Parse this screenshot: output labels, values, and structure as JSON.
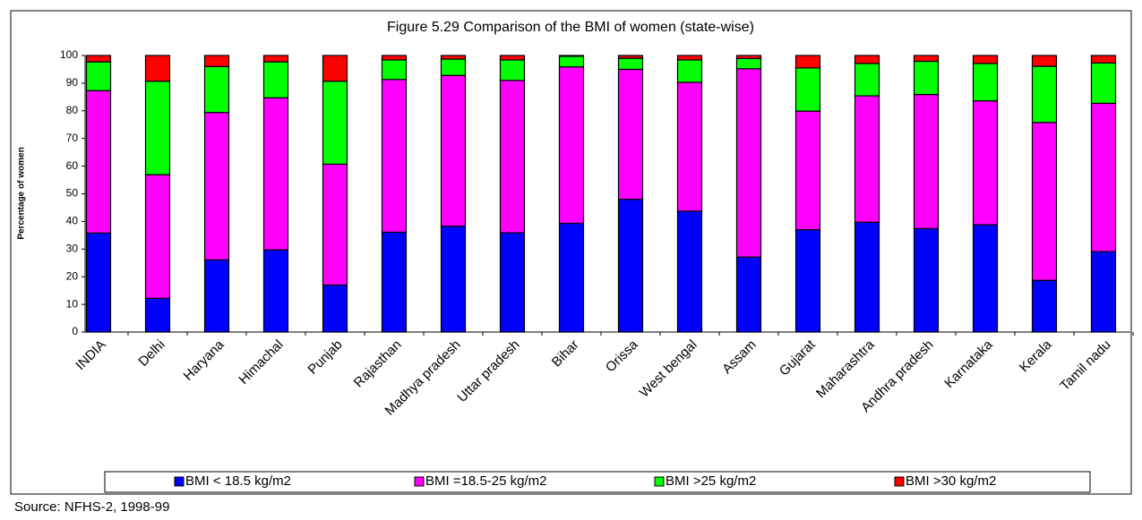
{
  "chart_data": {
    "type": "bar",
    "stacked": true,
    "title": "Figure 5.29 Comparison of the BMI of women (state-wise)",
    "ylabel": "Percentage of women",
    "source": "Source: NFHS-2, 1998-99",
    "categories": [
      "INDIA",
      "Delhi",
      "Haryana",
      "Himachal",
      "Punjab",
      "Rajasthan",
      "Madhya pradesh",
      "Uttar pradesh",
      "Bihar",
      "Orissa",
      "West bengal",
      "Assam",
      "Gujarat",
      "Maharashtra",
      "Andhra pradesh",
      "Karnataka",
      "Kerala",
      "Tamil nadu"
    ],
    "series": [
      {
        "name": "BMI < 18.5 kg/m2",
        "color": "#0000ff",
        "values": [
          35.8,
          12.2,
          26.1,
          29.7,
          17.0,
          36.1,
          38.3,
          35.9,
          39.3,
          48.0,
          43.7,
          27.1,
          37.0,
          39.7,
          37.4,
          38.8,
          18.7,
          29.1
        ]
      },
      {
        "name": "BMI =18.5-25 kg/m2",
        "color": "#ff00ff",
        "values": [
          51.5,
          44.7,
          53.3,
          55.0,
          43.7,
          55.2,
          54.5,
          55.1,
          56.6,
          47.0,
          46.6,
          68.1,
          42.9,
          45.7,
          48.5,
          44.8,
          57.1,
          53.6
        ]
      },
      {
        "name": "BMI >25 kg/m2",
        "color": "#00ff00",
        "values": [
          10.4,
          33.8,
          16.6,
          13.0,
          30.0,
          7.1,
          5.9,
          7.4,
          3.8,
          4.0,
          8.1,
          3.7,
          15.6,
          11.7,
          12.0,
          13.5,
          20.3,
          14.6
        ]
      },
      {
        "name": "BMI >30 kg/m2",
        "color": "#ff0000",
        "values": [
          2.3,
          9.3,
          4.0,
          2.3,
          9.3,
          1.6,
          1.3,
          1.6,
          0.3,
          1.0,
          1.6,
          1.1,
          4.5,
          2.9,
          2.1,
          2.9,
          3.9,
          2.7
        ]
      }
    ],
    "ylim": [
      0,
      100
    ],
    "yticks": [
      0,
      10,
      20,
      30,
      40,
      50,
      60,
      70,
      80,
      90,
      100
    ],
    "grid": false,
    "legend": "bottom"
  }
}
